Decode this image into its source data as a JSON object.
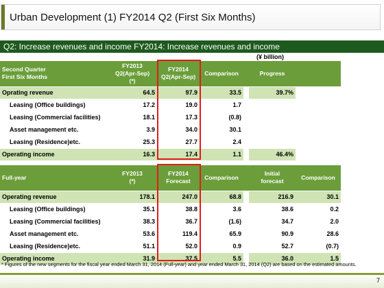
{
  "title": "Urban Development (1) FY2014 Q2  (First Six Months)",
  "subtitle": "Q2: Increase revenues and income FY2014: Increase revenues and income",
  "unit": "(¥ billion)",
  "q2": {
    "header": {
      "label1": "Second Quarter",
      "label2": "First Six Months",
      "col1a": "FY2013",
      "col1b": "Q2(Apr-Sep)",
      "col1c": "(*)",
      "col2a": "FY2014",
      "col2b": "Q2(Apr-Sep)",
      "col3": "Comparison",
      "col4": "Progress"
    },
    "rows": [
      {
        "label": "Oprating revenue",
        "prev": "64.5",
        "curr": "97.9",
        "comp": "33.5",
        "prog": "39.7%"
      },
      {
        "label": "Leasing (Office buildings)",
        "prev": "17.2",
        "curr": "19.0",
        "comp": "1.7",
        "prog": ""
      },
      {
        "label": "Leasing (Commercial facilities)",
        "prev": "18.1",
        "curr": "17.3",
        "comp": "(0.8)",
        "prog": ""
      },
      {
        "label": "Asset management etc.",
        "prev": "3.9",
        "curr": "34.0",
        "comp": "30.1",
        "prog": ""
      },
      {
        "label": "Leasing (Residence)etc.",
        "prev": "25.3",
        "curr": "27.7",
        "comp": "2.4",
        "prog": ""
      },
      {
        "label": "Operating income",
        "prev": "16.3",
        "curr": "17.4",
        "comp": "1.1",
        "prog": "46.4%"
      }
    ]
  },
  "fy": {
    "header": {
      "label1": "Full-year",
      "col1a": "FY2013",
      "col1b": "(*)",
      "col2a": "FY2014",
      "col2b": "Forecast",
      "col3": "Comparison",
      "col4a": "Initial",
      "col4b": "forecast",
      "col5": "Comparison"
    },
    "rows": [
      {
        "label": "Operating revenue",
        "prev": "178.1",
        "curr": "247.0",
        "comp": "68.8",
        "init": "216.9",
        "comp2": "30.1"
      },
      {
        "label": "Leasing (Office buildings)",
        "prev": "35.1",
        "curr": "38.8",
        "comp": "3.6",
        "init": "38.6",
        "comp2": "0.2"
      },
      {
        "label": "Leasing (Commercial facilities)",
        "prev": "38.3",
        "curr": "36.7",
        "comp": "(1.6)",
        "init": "34.7",
        "comp2": "2.0"
      },
      {
        "label": "Asset management etc.",
        "prev": "53.6",
        "curr": "119.4",
        "comp": "65.9",
        "init": "90.9",
        "comp2": "28.6"
      },
      {
        "label": "Leasing (Residence)etc.",
        "prev": "51.1",
        "curr": "52.0",
        "comp": "0.9",
        "init": "52.7",
        "comp2": "(0.7)"
      },
      {
        "label": "Operating income",
        "prev": "31.9",
        "curr": "37.5",
        "comp": "5.5",
        "init": "36.0",
        "comp2": "1.5"
      }
    ]
  },
  "footnote": "* Figures of the new segments for the fiscal year ended March 31, 2014 (Full-year) and year ended March 31, 2014 (Q2) are based on the estimated amounts.",
  "page_number": "7",
  "colors": {
    "header_green": "#6b9e3a",
    "row_green": "#cfe3b4",
    "bar_green": "#1e5a1e",
    "highlight_red": "#e01b1b"
  }
}
